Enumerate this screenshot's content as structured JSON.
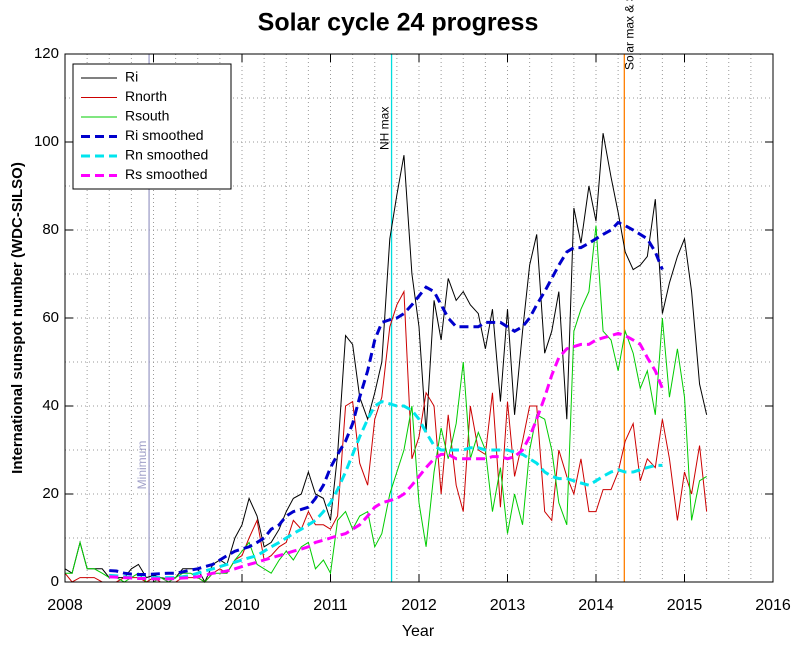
{
  "chart_data": {
    "type": "line",
    "title": "Solar cycle 24 progress",
    "xlabel": "Year",
    "ylabel": "International sunspot number (WDC-SILSO)",
    "xlim": [
      2008,
      2016
    ],
    "xticks": [
      2008,
      2009,
      2010,
      2011,
      2012,
      2013,
      2014,
      2015,
      2016
    ],
    "ylim": [
      0,
      120
    ],
    "yticks": [
      0,
      20,
      40,
      60,
      80,
      100,
      120
    ],
    "grid": true,
    "legend": "upper left",
    "x": [
      2008.0,
      2008.08,
      2008.17,
      2008.25,
      2008.33,
      2008.42,
      2008.5,
      2008.58,
      2008.67,
      2008.75,
      2008.83,
      2008.92,
      2009.0,
      2009.08,
      2009.17,
      2009.25,
      2009.33,
      2009.42,
      2009.5,
      2009.58,
      2009.67,
      2009.75,
      2009.83,
      2009.92,
      2010.0,
      2010.08,
      2010.17,
      2010.25,
      2010.33,
      2010.42,
      2010.5,
      2010.58,
      2010.67,
      2010.75,
      2010.83,
      2010.92,
      2011.0,
      2011.08,
      2011.17,
      2011.25,
      2011.33,
      2011.42,
      2011.5,
      2011.58,
      2011.67,
      2011.75,
      2011.83,
      2011.92,
      2012.0,
      2012.08,
      2012.17,
      2012.25,
      2012.33,
      2012.42,
      2012.5,
      2012.58,
      2012.67,
      2012.75,
      2012.83,
      2012.92,
      2013.0,
      2013.08,
      2013.17,
      2013.25,
      2013.33,
      2013.42,
      2013.5,
      2013.58,
      2013.67,
      2013.75,
      2013.83,
      2013.92,
      2014.0,
      2014.08,
      2014.17,
      2014.25,
      2014.33,
      2014.42,
      2014.5,
      2014.58,
      2014.67,
      2014.75,
      2014.83,
      2014.92,
      2015.0,
      2015.08,
      2015.17,
      2015.25
    ],
    "series": [
      {
        "name": "Ri",
        "color": "#000000",
        "width": 1,
        "dashed": false,
        "values": [
          3,
          2,
          9,
          3,
          3,
          3,
          1,
          1,
          1,
          3,
          4,
          1,
          1.5,
          1,
          0.7,
          1,
          3,
          3,
          3,
          0,
          4,
          5,
          4,
          10,
          13,
          19,
          15,
          8,
          9,
          12,
          16,
          19,
          20,
          25,
          20,
          19,
          14,
          29,
          56,
          54,
          42,
          37,
          43,
          50,
          78,
          88,
          97,
          70,
          58,
          34,
          64,
          55,
          69,
          64,
          66,
          63,
          61,
          53,
          62,
          41,
          62,
          38,
          57,
          72,
          79,
          52,
          57,
          66,
          37,
          85,
          77,
          90,
          82,
          102,
          92,
          84,
          75,
          71,
          72,
          74,
          87,
          61,
          68,
          74,
          78,
          66,
          45,
          38
        ]
      },
      {
        "name": "Rnorth",
        "color": "#cc0000",
        "width": 1,
        "dashed": false,
        "values": [
          2,
          0,
          1,
          1,
          1,
          0,
          0,
          0,
          1,
          1,
          1,
          0,
          1,
          0,
          0,
          0,
          1,
          1,
          1,
          0,
          2,
          3,
          2,
          5,
          6,
          10,
          14,
          5,
          6,
          8,
          9,
          14,
          12,
          16,
          13,
          13,
          12,
          15,
          40,
          41,
          27,
          22,
          37,
          42,
          58,
          63,
          66,
          28,
          33,
          43,
          40,
          20,
          38,
          22,
          16,
          40,
          30,
          29,
          43,
          17,
          41,
          24,
          32,
          40,
          40,
          16,
          14,
          30,
          24,
          20,
          28,
          16,
          16,
          21,
          21,
          25,
          32,
          36,
          23,
          28,
          26,
          37,
          28,
          14,
          25,
          20,
          31,
          16
        ]
      },
      {
        "name": "Rsouth",
        "color": "#00cc00",
        "width": 1,
        "dashed": false,
        "values": [
          2,
          2,
          9,
          3,
          3,
          2,
          1,
          1,
          0,
          1,
          2,
          0,
          0,
          1,
          0,
          1,
          2,
          2,
          1,
          0,
          2,
          2,
          2,
          5,
          7,
          9,
          4,
          3,
          2,
          5,
          7,
          5,
          8,
          9,
          3,
          5,
          2,
          14,
          16,
          12,
          15,
          16,
          8,
          11,
          20,
          25,
          30,
          40,
          18,
          8,
          25,
          35,
          28,
          36,
          50,
          28,
          34,
          30,
          16,
          26,
          11,
          20,
          13,
          30,
          38,
          37,
          30,
          18,
          13,
          57,
          62,
          66,
          81,
          57,
          55,
          48,
          57,
          52,
          44,
          48,
          38,
          60,
          42,
          53,
          42,
          14,
          23,
          24
        ]
      },
      {
        "name": "Ri smoothed",
        "color": "#0000cc",
        "width": 3,
        "dashed": true,
        "values": [
          null,
          null,
          null,
          null,
          null,
          null,
          2.6,
          2.5,
          2,
          1.8,
          1.7,
          1.7,
          1.8,
          1.9,
          2,
          2,
          2.3,
          2.7,
          3,
          3.5,
          4,
          5,
          6,
          7,
          7.5,
          8,
          9,
          10,
          12,
          13,
          15,
          16,
          16.5,
          17,
          19,
          22,
          26,
          29,
          32,
          36,
          42,
          48,
          55,
          59,
          59.6,
          60,
          61,
          63,
          65,
          67,
          66,
          63,
          60,
          58,
          58,
          58,
          58,
          59,
          59,
          59,
          58,
          57,
          58,
          60,
          63,
          66,
          69,
          72,
          75,
          76,
          76,
          77,
          78,
          79,
          80,
          81.7,
          81,
          80,
          79,
          78,
          75,
          71,
          null,
          null,
          null,
          null,
          null,
          null
        ]
      },
      {
        "name": "Rn smoothed",
        "color": "#00e5ee",
        "width": 3,
        "dashed": true,
        "values": [
          null,
          null,
          null,
          null,
          null,
          null,
          1.5,
          1.4,
          1.2,
          1,
          0.9,
          0.9,
          1,
          1,
          1,
          1,
          1.2,
          1.5,
          2,
          2.5,
          3,
          3.5,
          4,
          4.5,
          5,
          5.5,
          6,
          7,
          8,
          9,
          10,
          11,
          12,
          13,
          14,
          16,
          18,
          21,
          25,
          29,
          33,
          37,
          40,
          41,
          40.5,
          40,
          40,
          39,
          37,
          34,
          31,
          30,
          30,
          30,
          30,
          30.5,
          30.5,
          30,
          30,
          30,
          30,
          29.5,
          29,
          28,
          27,
          25,
          24,
          23.5,
          23.5,
          23,
          22.5,
          22,
          23,
          24,
          25,
          25.5,
          25,
          25,
          25.5,
          26,
          26.5,
          26.5,
          null,
          null,
          null,
          null,
          null,
          null
        ]
      },
      {
        "name": "Rs smoothed",
        "color": "#ff00ff",
        "width": 3,
        "dashed": true,
        "values": [
          null,
          null,
          null,
          null,
          null,
          null,
          1.2,
          1.1,
          1,
          0.9,
          0.8,
          0.8,
          0.7,
          0.7,
          0.7,
          0.8,
          0.9,
          1,
          1.2,
          1.5,
          2,
          2.2,
          2.5,
          3,
          3.5,
          4,
          4.5,
          5,
          5.5,
          6,
          6.5,
          7,
          7.5,
          8,
          9,
          9.5,
          10,
          10.5,
          11,
          12,
          13,
          15,
          17,
          18,
          18.5,
          19,
          20,
          22,
          24,
          26,
          28,
          29,
          29,
          28,
          28,
          28,
          28,
          28,
          28.5,
          28.5,
          28,
          28.5,
          30,
          33,
          37,
          42,
          47,
          51,
          53,
          53.5,
          54,
          54,
          55,
          55.5,
          56,
          56.5,
          56,
          55,
          54,
          51,
          48,
          44,
          null,
          null,
          null,
          null,
          null,
          null
        ]
      }
    ],
    "annotations": [
      {
        "x": 2008.95,
        "label": "Minimum",
        "color": "#a0a0c8"
      },
      {
        "x": 2011.69,
        "label": "NH max",
        "color": "#00dddd"
      },
      {
        "x": 2014.32,
        "label": "Solar max & SH max",
        "color": "#ff7f00"
      }
    ]
  }
}
